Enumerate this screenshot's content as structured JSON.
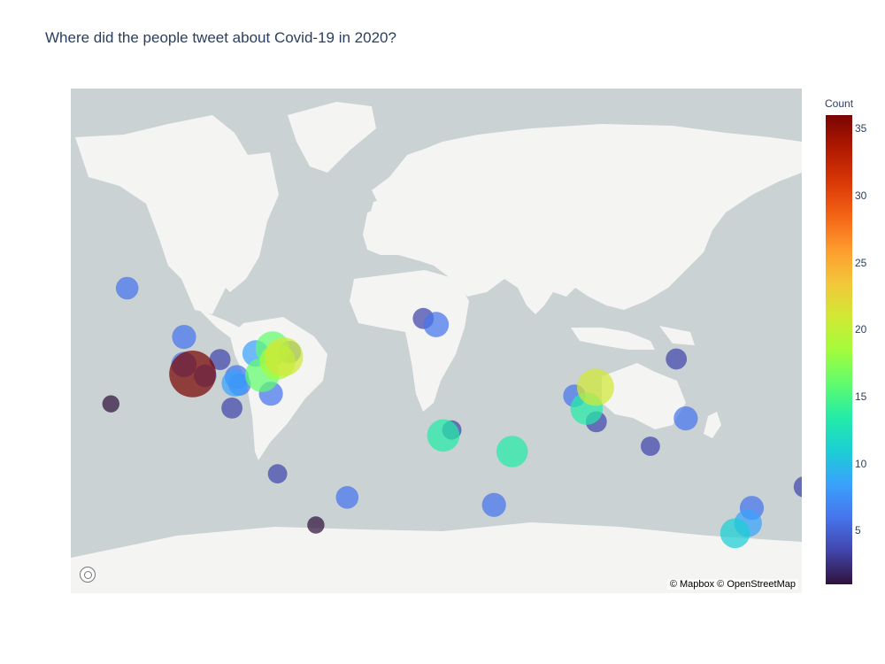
{
  "title": "Where did the people tweet about Covid-19 in 2020?",
  "attribution": "© Mapbox © OpenStreetMap",
  "colors": {
    "ocean": "#cad2d3",
    "land": "#f4f4f2",
    "scale": [
      "#30123b",
      "#4145ab",
      "#4675ed",
      "#39a2fc",
      "#1bcfd4",
      "#24eca6",
      "#61fc6c",
      "#a4fc3b",
      "#d1e834",
      "#f3c63a",
      "#fe9b2d",
      "#f36315",
      "#d93806",
      "#b11901",
      "#7a0402"
    ]
  },
  "colorbar": {
    "title": "Count",
    "min": 1,
    "max": 36,
    "ticks": [
      {
        "value": 5,
        "label": "5"
      },
      {
        "value": 10,
        "label": "10"
      },
      {
        "value": 15,
        "label": "15"
      },
      {
        "value": 20,
        "label": "20"
      },
      {
        "value": 25,
        "label": "25"
      },
      {
        "value": 30,
        "label": "30"
      },
      {
        "value": 35,
        "label": "35"
      }
    ]
  },
  "chart_data": {
    "type": "scatter",
    "title": "Where did the people tweet about Covid-19 in 2020?",
    "color_variable": "Count",
    "size_variable": "Count",
    "points": [
      {
        "lon": -118.2,
        "lat": 34.1,
        "count": 35
      },
      {
        "lon": -74.0,
        "lat": 40.7,
        "count": 22
      },
      {
        "lon": -77.0,
        "lat": 38.9,
        "count": 18
      },
      {
        "lon": -79.4,
        "lat": 43.7,
        "count": 16
      },
      {
        "lon": -84.4,
        "lat": 33.7,
        "count": 16
      },
      {
        "lon": -97.7,
        "lat": 30.3,
        "count": 8
      },
      {
        "lon": -87.6,
        "lat": 41.9,
        "count": 8
      },
      {
        "lon": -122.4,
        "lat": 37.8,
        "count": 7
      },
      {
        "lon": -122.3,
        "lat": 47.6,
        "count": 6
      },
      {
        "lon": -104.9,
        "lat": 39.7,
        "count": 4
      },
      {
        "lon": -112.1,
        "lat": 33.4,
        "count": 5
      },
      {
        "lon": -96.8,
        "lat": 32.8,
        "count": 6
      },
      {
        "lon": -95.4,
        "lat": 29.8,
        "count": 5
      },
      {
        "lon": -80.2,
        "lat": 25.8,
        "count": 6
      },
      {
        "lon": -71.1,
        "lat": 42.4,
        "count": 5
      },
      {
        "lon": -149.9,
        "lat": 61.2,
        "count": 5
      },
      {
        "lon": -157.8,
        "lat": 21.3,
        "count": 2
      },
      {
        "lon": -99.1,
        "lat": 19.4,
        "count": 4
      },
      {
        "lon": -0.1,
        "lat": 51.5,
        "count": 7
      },
      {
        "lon": -6.3,
        "lat": 53.3,
        "count": 4
      },
      {
        "lon": 3.4,
        "lat": 6.5,
        "count": 14
      },
      {
        "lon": 7.5,
        "lat": 9.1,
        "count": 3
      },
      {
        "lon": 36.8,
        "lat": -1.3,
        "count": 13
      },
      {
        "lon": 28.0,
        "lat": -26.2,
        "count": 6
      },
      {
        "lon": 72.9,
        "lat": 19.1,
        "count": 14
      },
      {
        "lon": 77.2,
        "lat": 28.6,
        "count": 20
      },
      {
        "lon": 77.6,
        "lat": 13.0,
        "count": 4
      },
      {
        "lon": 67.0,
        "lat": 24.9,
        "count": 5
      },
      {
        "lon": 121.0,
        "lat": 14.6,
        "count": 6
      },
      {
        "lon": 116.4,
        "lat": 39.9,
        "count": 4
      },
      {
        "lon": 103.8,
        "lat": 1.3,
        "count": 3
      },
      {
        "lon": 151.2,
        "lat": -33.9,
        "count": 9
      },
      {
        "lon": 144.9,
        "lat": -37.8,
        "count": 11
      },
      {
        "lon": 153.0,
        "lat": -27.5,
        "count": 6
      },
      {
        "lon": 178.4,
        "lat": -18.1,
        "count": 4
      },
      {
        "lon": -43.2,
        "lat": -22.9,
        "count": 5
      },
      {
        "lon": -77.0,
        "lat": -12.0,
        "count": 3
      },
      {
        "lon": -58.4,
        "lat": -34.6,
        "count": 2
      }
    ]
  }
}
